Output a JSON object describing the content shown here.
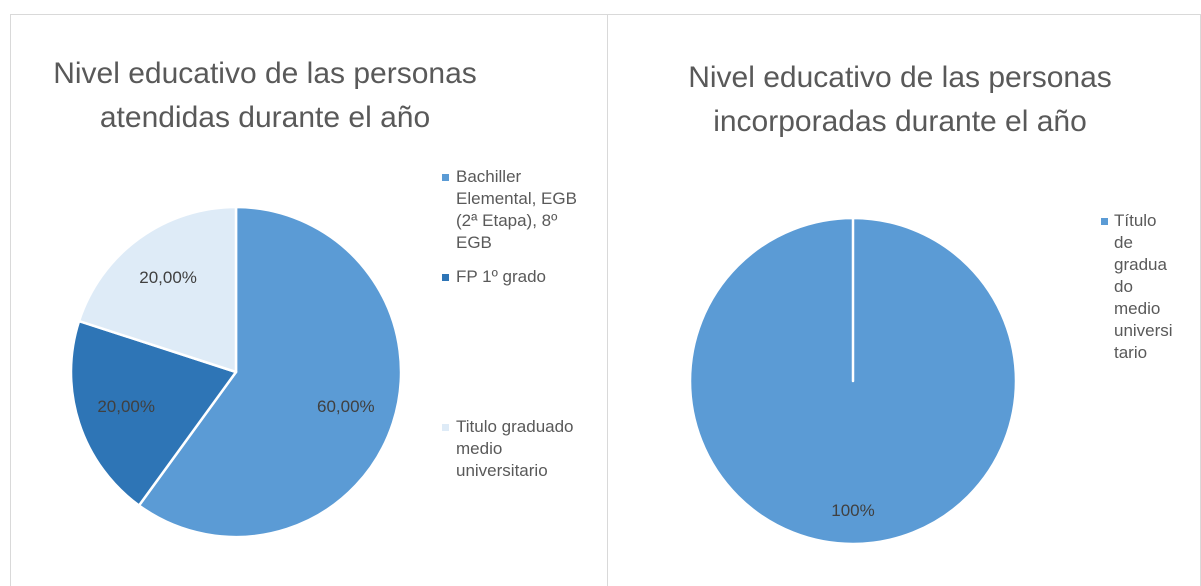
{
  "chart_data": [
    {
      "type": "pie",
      "title": "Nivel educativo de las personas atendidas durante el año",
      "categories": [
        "Bachiller Elemental, EGB (2ª Etapa), 8º EGB",
        "FP 1º grado",
        "Titulo graduado medio universitario"
      ],
      "values": [
        60,
        20,
        20
      ],
      "value_labels": [
        "60,00%",
        "20,00%",
        "20,00%"
      ],
      "colors": [
        "#5b9bd5",
        "#2e75b6",
        "#deebf7"
      ],
      "legend": "right"
    },
    {
      "type": "pie",
      "title": "Nivel educativo de las personas incorporadas durante el año",
      "categories": [
        "Título de graduado medio universitario"
      ],
      "values": [
        100
      ],
      "value_labels": [
        "100%"
      ],
      "colors": [
        "#5b9bd5"
      ],
      "legend": "right"
    }
  ]
}
